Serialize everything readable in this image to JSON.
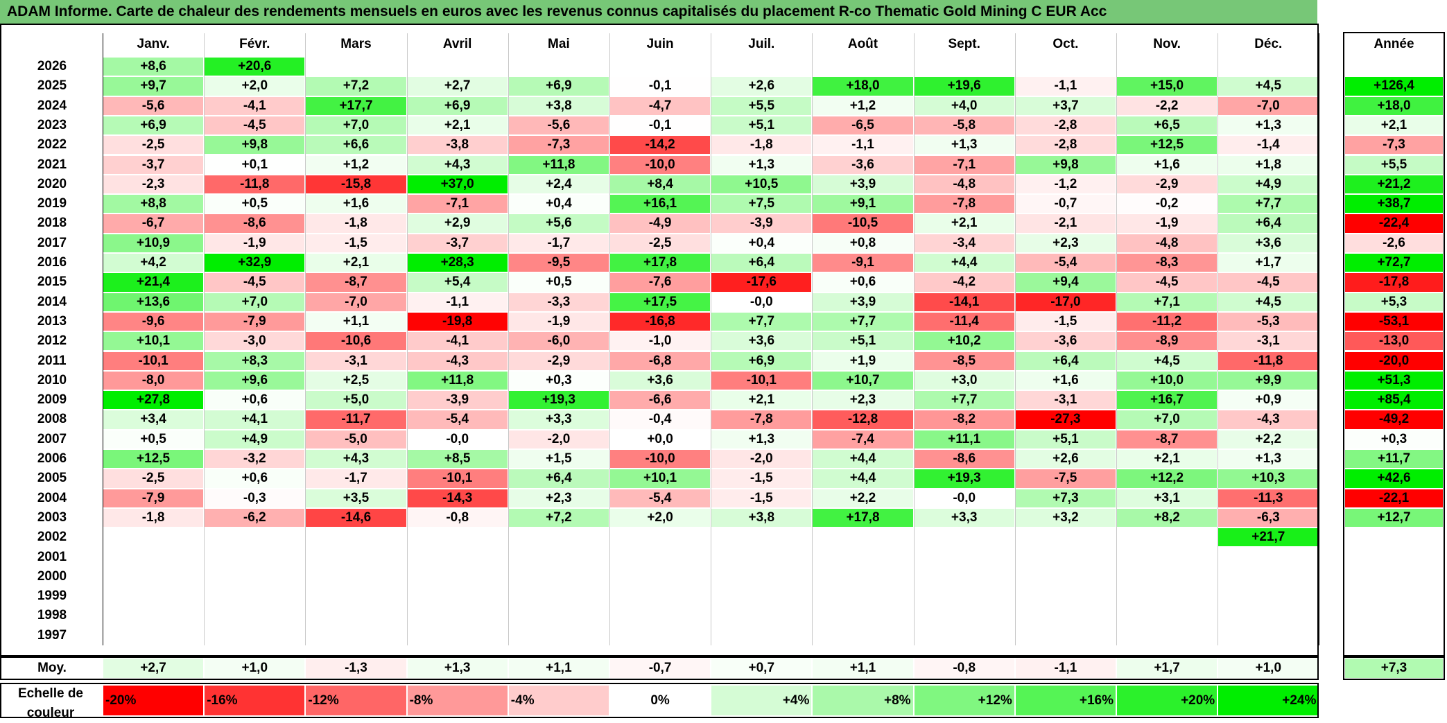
{
  "title": "ADAM Informe. Carte de chaleur des rendements mensuels en euros avec les revenus connus capitalisés du placement R-co Thematic Gold Mining C EUR Acc",
  "chart_data": {
    "type": "heatmap",
    "title": "ADAM Informe. Carte de chaleur des rendements mensuels en euros avec les revenus connus capitalisés du placement R-co Thematic Gold Mining C EUR Acc",
    "columns": [
      "Janv.",
      "Févr.",
      "Mars",
      "Avril",
      "Mai",
      "Juin",
      "Juil.",
      "Août",
      "Sept.",
      "Oct.",
      "Nov.",
      "Déc."
    ],
    "year_column_label": "Année",
    "rows": [
      {
        "year": "2026",
        "months": [
          "+8,6",
          "+20,6",
          "",
          "",
          "",
          "",
          "",
          "",
          "",
          "",
          "",
          ""
        ],
        "annual": ""
      },
      {
        "year": "2025",
        "months": [
          "+9,7",
          "+2,0",
          "+7,2",
          "+2,7",
          "+6,9",
          "-0,1",
          "+2,6",
          "+18,0",
          "+19,6",
          "-1,1",
          "+15,0",
          "+4,5"
        ],
        "annual": "+126,4"
      },
      {
        "year": "2024",
        "months": [
          "-5,6",
          "-4,1",
          "+17,7",
          "+6,9",
          "+3,8",
          "-4,7",
          "+5,5",
          "+1,2",
          "+4,0",
          "+3,7",
          "-2,2",
          "-7,0"
        ],
        "annual": "+18,0"
      },
      {
        "year": "2023",
        "months": [
          "+6,9",
          "-4,5",
          "+7,0",
          "+2,1",
          "-5,6",
          "-0,1",
          "+5,1",
          "-6,5",
          "-5,8",
          "-2,8",
          "+6,5",
          "+1,3"
        ],
        "annual": "+2,1"
      },
      {
        "year": "2022",
        "months": [
          "-2,5",
          "+9,8",
          "+6,6",
          "-3,8",
          "-7,3",
          "-14,2",
          "-1,8",
          "-1,1",
          "+1,3",
          "-2,8",
          "+12,5",
          "-1,4"
        ],
        "annual": "-7,3"
      },
      {
        "year": "2021",
        "months": [
          "-3,7",
          "+0,1",
          "+1,2",
          "+4,3",
          "+11,8",
          "-10,0",
          "+1,3",
          "-3,6",
          "-7,1",
          "+9,8",
          "+1,6",
          "+1,8"
        ],
        "annual": "+5,5"
      },
      {
        "year": "2020",
        "months": [
          "-2,3",
          "-11,8",
          "-15,8",
          "+37,0",
          "+2,4",
          "+8,4",
          "+10,5",
          "+3,9",
          "-4,8",
          "-1,2",
          "-2,9",
          "+4,9"
        ],
        "annual": "+21,2"
      },
      {
        "year": "2019",
        "months": [
          "+8,8",
          "+0,5",
          "+1,6",
          "-7,1",
          "+0,4",
          "+16,1",
          "+7,5",
          "+9,1",
          "-7,8",
          "-0,7",
          "-0,2",
          "+7,7"
        ],
        "annual": "+38,7"
      },
      {
        "year": "2018",
        "months": [
          "-6,7",
          "-8,6",
          "-1,8",
          "+2,9",
          "+5,6",
          "-4,9",
          "-3,9",
          "-10,5",
          "+2,1",
          "-2,1",
          "-1,9",
          "+6,4"
        ],
        "annual": "-22,4"
      },
      {
        "year": "2017",
        "months": [
          "+10,9",
          "-1,9",
          "-1,5",
          "-3,7",
          "-1,7",
          "-2,5",
          "+0,4",
          "+0,8",
          "-3,4",
          "+2,3",
          "-4,8",
          "+3,6"
        ],
        "annual": "-2,6"
      },
      {
        "year": "2016",
        "months": [
          "+4,2",
          "+32,9",
          "+2,1",
          "+28,3",
          "-9,5",
          "+17,8",
          "+6,4",
          "-9,1",
          "+4,4",
          "-5,4",
          "-8,3",
          "+1,7"
        ],
        "annual": "+72,7"
      },
      {
        "year": "2015",
        "months": [
          "+21,4",
          "-4,5",
          "-8,7",
          "+5,4",
          "+0,5",
          "-7,6",
          "-17,6",
          "+0,6",
          "-4,2",
          "+9,4",
          "-4,5",
          "-4,5"
        ],
        "annual": "-17,8"
      },
      {
        "year": "2014",
        "months": [
          "+13,6",
          "+7,0",
          "-7,0",
          "-1,1",
          "-3,3",
          "+17,5",
          "-0,0",
          "+3,9",
          "-14,1",
          "-17,0",
          "+7,1",
          "+4,5"
        ],
        "annual": "+5,3"
      },
      {
        "year": "2013",
        "months": [
          "-9,6",
          "-7,9",
          "+1,1",
          "-19,8",
          "-1,9",
          "-16,8",
          "+7,7",
          "+7,7",
          "-11,4",
          "-1,5",
          "-11,2",
          "-5,3"
        ],
        "annual": "-53,1"
      },
      {
        "year": "2012",
        "months": [
          "+10,1",
          "-3,0",
          "-10,6",
          "-4,1",
          "-6,0",
          "-1,0",
          "+3,6",
          "+5,1",
          "+10,2",
          "-3,6",
          "-8,9",
          "-3,1"
        ],
        "annual": "-13,0"
      },
      {
        "year": "2011",
        "months": [
          "-10,1",
          "+8,3",
          "-3,1",
          "-4,3",
          "-2,9",
          "-6,8",
          "+6,9",
          "+1,9",
          "-8,5",
          "+6,4",
          "+4,5",
          "-11,8"
        ],
        "annual": "-20,0"
      },
      {
        "year": "2010",
        "months": [
          "-8,0",
          "+9,6",
          "+2,5",
          "+11,8",
          "+0,3",
          "+3,6",
          "-10,1",
          "+10,7",
          "+3,0",
          "+1,6",
          "+10,0",
          "+9,9"
        ],
        "annual": "+51,3"
      },
      {
        "year": "2009",
        "months": [
          "+27,8",
          "+0,6",
          "+5,0",
          "-3,9",
          "+19,3",
          "-6,6",
          "+2,1",
          "+2,3",
          "+7,7",
          "-3,1",
          "+16,7",
          "+0,9"
        ],
        "annual": "+85,4"
      },
      {
        "year": "2008",
        "months": [
          "+3,4",
          "+4,1",
          "-11,7",
          "-5,4",
          "+3,3",
          "-0,4",
          "-7,8",
          "-12,8",
          "-8,2",
          "-27,3",
          "+7,0",
          "-4,3"
        ],
        "annual": "-49,2"
      },
      {
        "year": "2007",
        "months": [
          "+0,5",
          "+4,9",
          "-5,0",
          "-0,0",
          "-2,0",
          "+0,0",
          "+1,3",
          "-7,4",
          "+11,1",
          "+5,1",
          "-8,7",
          "+2,2"
        ],
        "annual": "+0,3"
      },
      {
        "year": "2006",
        "months": [
          "+12,5",
          "-3,2",
          "+4,3",
          "+8,5",
          "+1,5",
          "-10,0",
          "-2,0",
          "+4,4",
          "-8,6",
          "+2,6",
          "+2,1",
          "+1,3"
        ],
        "annual": "+11,7"
      },
      {
        "year": "2005",
        "months": [
          "-2,5",
          "+0,6",
          "-1,7",
          "-10,1",
          "+6,4",
          "+10,1",
          "-1,5",
          "+4,4",
          "+19,3",
          "-7,5",
          "+12,2",
          "+10,3"
        ],
        "annual": "+42,6"
      },
      {
        "year": "2004",
        "months": [
          "-7,9",
          "-0,3",
          "+3,5",
          "-14,3",
          "+2,3",
          "-5,4",
          "-1,5",
          "+2,2",
          "-0,0",
          "+7,3",
          "+3,1",
          "-11,3"
        ],
        "annual": "-22,1"
      },
      {
        "year": "2003",
        "months": [
          "-1,8",
          "-6,2",
          "-14,6",
          "-0,8",
          "+7,2",
          "+2,0",
          "+3,8",
          "+17,8",
          "+3,3",
          "+3,2",
          "+8,2",
          "-6,3"
        ],
        "annual": "+12,7"
      },
      {
        "year": "2002",
        "months": [
          "",
          "",
          "",
          "",
          "",
          "",
          "",
          "",
          "",
          "",
          "",
          "+21,7"
        ],
        "annual": ""
      },
      {
        "year": "2001",
        "months": [
          "",
          "",
          "",
          "",
          "",
          "",
          "",
          "",
          "",
          "",
          "",
          ""
        ],
        "annual": ""
      },
      {
        "year": "2000",
        "months": [
          "",
          "",
          "",
          "",
          "",
          "",
          "",
          "",
          "",
          "",
          "",
          ""
        ],
        "annual": ""
      },
      {
        "year": "1999",
        "months": [
          "",
          "",
          "",
          "",
          "",
          "",
          "",
          "",
          "",
          "",
          "",
          ""
        ],
        "annual": ""
      },
      {
        "year": "1998",
        "months": [
          "",
          "",
          "",
          "",
          "",
          "",
          "",
          "",
          "",
          "",
          "",
          ""
        ],
        "annual": ""
      },
      {
        "year": "1997",
        "months": [
          "",
          "",
          "",
          "",
          "",
          "",
          "",
          "",
          "",
          "",
          "",
          ""
        ],
        "annual": ""
      }
    ],
    "average": {
      "label": "Moy.",
      "months": [
        "+2,7",
        "+1,0",
        "-1,3",
        "+1,3",
        "+1,1",
        "-0,7",
        "+0,7",
        "+1,1",
        "-0,8",
        "-1,1",
        "+1,7",
        "+1,0"
      ],
      "annual": "+7,3"
    },
    "color_scale": {
      "label": "Echelle de couleur",
      "stops": [
        "-20%",
        "-16%",
        "-12%",
        "-8%",
        "-4%",
        "0%",
        "+4%",
        "+8%",
        "+12%",
        "+16%",
        "+20%",
        "+24%"
      ],
      "min_value": -20,
      "max_value": 24,
      "negative_color": "#ff0000",
      "positive_color": "#00ee00",
      "neutral_color": "#ffffff"
    }
  }
}
